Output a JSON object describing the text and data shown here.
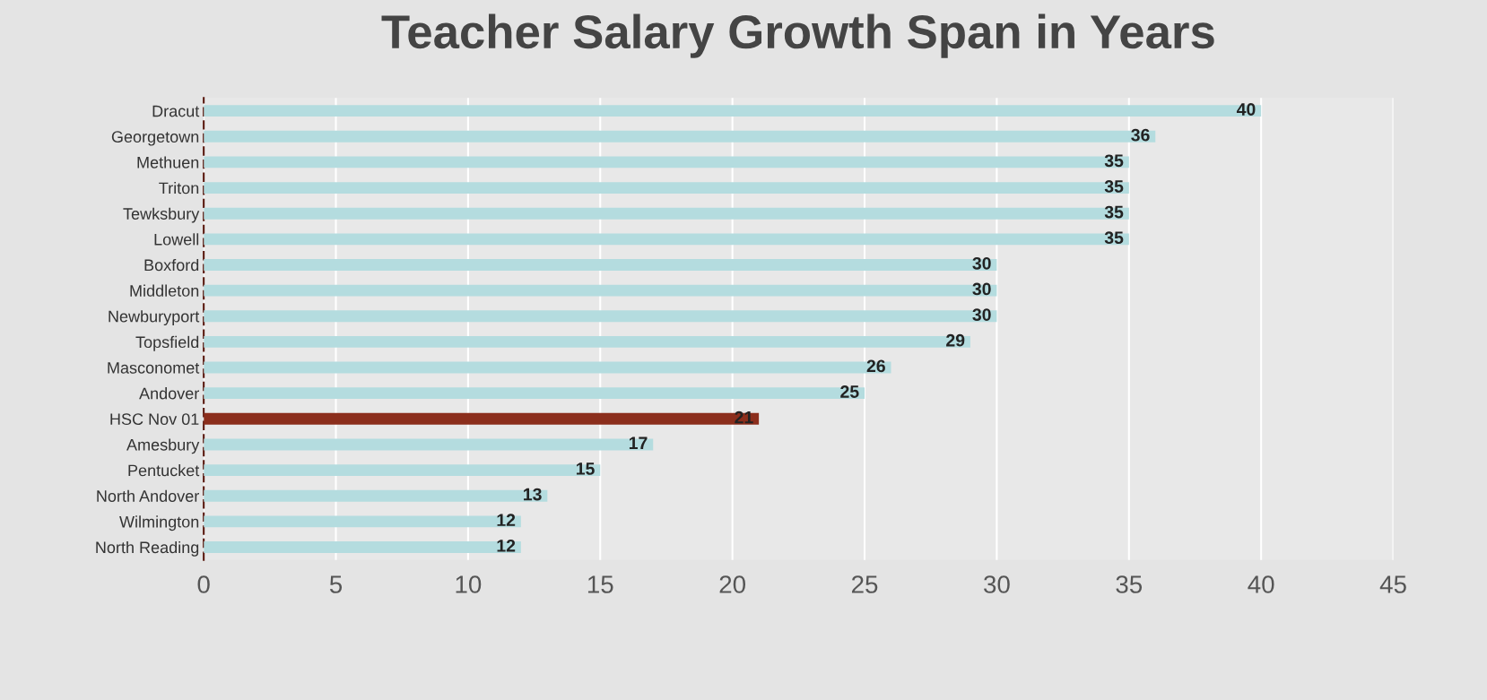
{
  "chart_data": {
    "type": "bar",
    "orientation": "horizontal",
    "title": "Teacher Salary Growth Span in Years",
    "categories": [
      "Dracut",
      "Georgetown",
      "Methuen",
      "Triton",
      "Tewksbury",
      "Lowell",
      "Boxford",
      "Middleton",
      "Newburyport",
      "Topsfield",
      "Masconomet",
      "Andover",
      "HSC Nov 01",
      "Amesbury",
      "Pentucket",
      "North Andover",
      "Wilmington",
      "North Reading"
    ],
    "values": [
      40,
      36,
      35,
      35,
      35,
      35,
      30,
      30,
      30,
      29,
      26,
      25,
      21,
      17,
      15,
      13,
      12,
      12
    ],
    "colors": [
      "#b4dcdf",
      "#b4dcdf",
      "#b4dcdf",
      "#b4dcdf",
      "#b4dcdf",
      "#b4dcdf",
      "#b4dcdf",
      "#b4dcdf",
      "#b4dcdf",
      "#b4dcdf",
      "#b4dcdf",
      "#b4dcdf",
      "#8b2e1c",
      "#b4dcdf",
      "#b4dcdf",
      "#b4dcdf",
      "#b4dcdf",
      "#b4dcdf"
    ],
    "xlim": [
      0,
      45
    ],
    "xticks": [
      0,
      5,
      10,
      15,
      20,
      25,
      30,
      35,
      40,
      45
    ],
    "grid": "x",
    "data_labels": true,
    "legend": false
  }
}
